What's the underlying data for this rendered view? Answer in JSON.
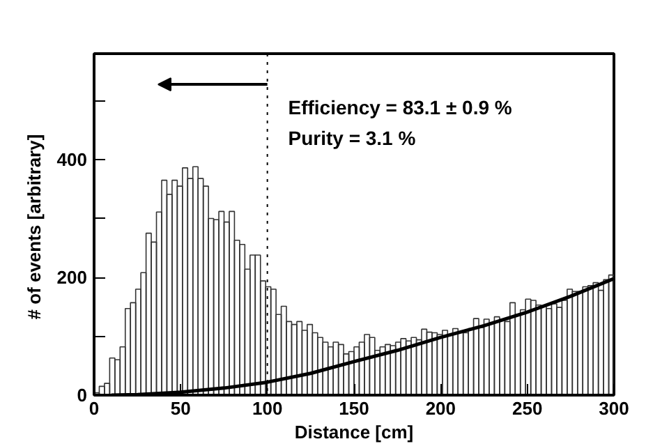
{
  "chart_data": {
    "type": "histogram",
    "xlabel": "Distance [cm]",
    "ylabel": "# of events  [arbitrary]",
    "bins": [
      0,
      3,
      6,
      9,
      12,
      15,
      18,
      21,
      24,
      27,
      30,
      33,
      36,
      39,
      42,
      45,
      48,
      51,
      54,
      57,
      60,
      63,
      66,
      69,
      72,
      75,
      78,
      81,
      84,
      87,
      90,
      93,
      96,
      99,
      102,
      105,
      108,
      111,
      114,
      117,
      120,
      123,
      126,
      129,
      132,
      135,
      138,
      141,
      144,
      147,
      150,
      153,
      156,
      159,
      162,
      165,
      168,
      171,
      174,
      177,
      180,
      183,
      186,
      189,
      192,
      195,
      198,
      201,
      204,
      207,
      210,
      213,
      216,
      219,
      222,
      225,
      228,
      231,
      234,
      237,
      240,
      243,
      246,
      249,
      252,
      255,
      258,
      261,
      264,
      267,
      270,
      273,
      276,
      279,
      282,
      285,
      288,
      291,
      294,
      297,
      300
    ],
    "values": [
      4,
      15,
      20,
      63,
      60,
      82,
      147,
      157,
      180,
      208,
      275,
      260,
      311,
      365,
      341,
      365,
      355,
      386,
      368,
      388,
      368,
      355,
      300,
      298,
      312,
      294,
      312,
      263,
      256,
      214,
      238,
      238,
      194,
      184,
      180,
      137,
      151,
      125,
      120,
      125,
      110,
      120,
      106,
      98,
      90,
      82,
      90,
      86,
      70,
      74,
      82,
      90,
      103,
      98,
      76,
      82,
      86,
      84,
      90,
      96,
      92,
      98,
      94,
      112,
      107,
      106,
      103,
      110,
      103,
      113,
      107,
      106,
      113,
      130,
      115,
      129,
      122,
      133,
      129,
      125,
      157,
      137,
      145,
      163,
      161,
      153,
      151,
      147,
      155,
      149,
      161,
      180,
      176,
      176,
      184,
      186,
      191,
      178,
      196,
      204
    ],
    "color": "#333333",
    "series": [
      {
        "type": "line",
        "color": "#000000",
        "x": [
          10,
          25,
          50,
          75,
          100,
          125,
          150,
          175,
          200,
          225,
          250,
          275,
          300
        ],
        "values": [
          0,
          1,
          5,
          12,
          22,
          37,
          57,
          76,
          98,
          118,
          141,
          168,
          198
        ]
      }
    ],
    "xlim": [
      0,
      300
    ],
    "xticks": [
      0,
      50,
      100,
      150,
      200,
      250,
      300
    ],
    "ylim": [
      0,
      580
    ],
    "yticks": [
      0,
      {
        "value": 100,
        "label": null
      },
      200,
      {
        "value": 300,
        "label": null
      },
      400,
      {
        "value": 500,
        "label": null
      }
    ],
    "ref_lines": [
      {
        "axis": "x",
        "value": 100,
        "line_style": "dotted",
        "color": "#000000"
      }
    ],
    "annotations": [
      "Efficiency = 83.1 ± 0.9 %",
      "Purity = 3.1 %"
    ],
    "grid": false
  }
}
